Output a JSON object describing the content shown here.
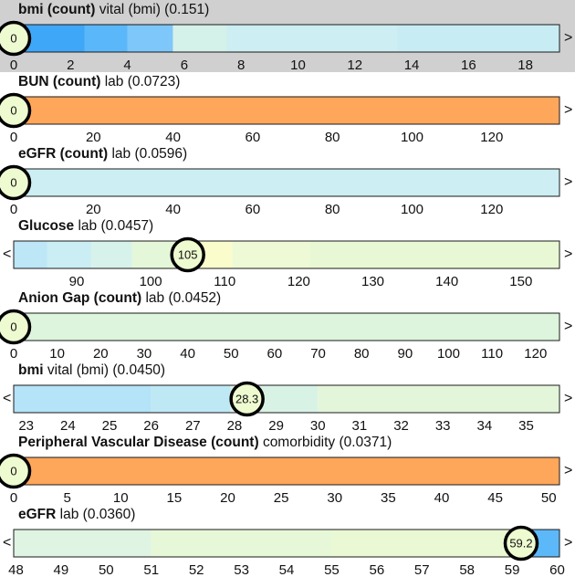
{
  "chart_data": [
    {
      "type": "heatmap",
      "title": "bmi (count)",
      "category": "vital (bmi)",
      "importance": "(0.151)",
      "highlighted": true,
      "xlim": [
        0,
        19.2
      ],
      "ticks": [
        0,
        2,
        4,
        6,
        8,
        10,
        12,
        14,
        16,
        18
      ],
      "value": 0,
      "value_label": "0",
      "left_arrow": "<",
      "right_arrow": ">",
      "bands": [
        {
          "from": 0,
          "to": 2.5,
          "color": "#3fa7f8"
        },
        {
          "from": 2.5,
          "to": 4,
          "color": "#5ab7f9"
        },
        {
          "from": 4,
          "to": 5.6,
          "color": "#7dc7fa"
        },
        {
          "from": 5.6,
          "to": 7.5,
          "color": "#d4f1ea"
        },
        {
          "from": 7.5,
          "to": 13.5,
          "color": "#cdeef2"
        },
        {
          "from": 13.5,
          "to": 19.2,
          "color": "#c8ecf4"
        }
      ]
    },
    {
      "type": "heatmap",
      "title": "BUN (count)",
      "category": "lab",
      "importance": "(0.0723)",
      "highlighted": false,
      "xlim": [
        0,
        137
      ],
      "ticks": [
        0,
        20,
        40,
        60,
        80,
        100,
        120
      ],
      "value": 0,
      "value_label": "0",
      "left_arrow": "<",
      "right_arrow": ">",
      "bands": [
        {
          "from": 0,
          "to": 137,
          "color": "#fea65a"
        }
      ]
    },
    {
      "type": "heatmap",
      "title": "eGFR (count)",
      "category": "lab",
      "importance": "(0.0596)",
      "highlighted": false,
      "xlim": [
        0,
        137
      ],
      "ticks": [
        0,
        20,
        40,
        60,
        80,
        100,
        120
      ],
      "value": 0,
      "value_label": "0",
      "left_arrow": "<",
      "right_arrow": ">",
      "bands": [
        {
          "from": 0,
          "to": 137,
          "color": "#cdeef2"
        }
      ]
    },
    {
      "type": "heatmap",
      "title": "Glucose",
      "category": "lab",
      "importance": "(0.0457)",
      "highlighted": false,
      "xlim": [
        81.5,
        155.2
      ],
      "ticks": [
        90,
        100,
        110,
        120,
        130,
        140,
        150
      ],
      "value": 105,
      "value_label": "105",
      "left_arrow": "<",
      "right_arrow": ">",
      "bands": [
        {
          "from": 81.5,
          "to": 86,
          "color": "#bde6f6"
        },
        {
          "from": 86,
          "to": 92,
          "color": "#caeef3"
        },
        {
          "from": 92,
          "to": 97.5,
          "color": "#d6f2ea"
        },
        {
          "from": 97.5,
          "to": 106,
          "color": "#e4f7d8"
        },
        {
          "from": 106,
          "to": 111,
          "color": "#fafccc"
        },
        {
          "from": 111,
          "to": 121.5,
          "color": "#eefad6"
        },
        {
          "from": 121.5,
          "to": 155.2,
          "color": "#e8f8d4"
        }
      ]
    },
    {
      "type": "heatmap",
      "title": "Anion Gap (count)",
      "category": "lab",
      "importance": "(0.0452)",
      "highlighted": false,
      "xlim": [
        0,
        125.5
      ],
      "ticks": [
        0,
        10,
        20,
        30,
        40,
        50,
        60,
        70,
        80,
        90,
        100,
        110,
        120
      ],
      "value": 0,
      "value_label": "0",
      "left_arrow": "<",
      "right_arrow": ">",
      "bands": [
        {
          "from": 0,
          "to": 125.5,
          "color": "#dcf5dc"
        }
      ]
    },
    {
      "type": "heatmap",
      "title": "bmi",
      "category": "vital (bmi)",
      "importance": "(0.0450)",
      "highlighted": false,
      "xlim": [
        22.7,
        35.8
      ],
      "ticks": [
        23,
        24,
        25,
        26,
        27,
        28,
        29,
        30,
        31,
        32,
        33,
        34,
        35
      ],
      "value": 28.3,
      "value_label": "28.3",
      "left_arrow": "<",
      "right_arrow": ">",
      "bands": [
        {
          "from": 22.7,
          "to": 26,
          "color": "#b5e3f7"
        },
        {
          "from": 26,
          "to": 27.9,
          "color": "#bfe8f5"
        },
        {
          "from": 27.9,
          "to": 30,
          "color": "#d8f3e6"
        },
        {
          "from": 30,
          "to": 35.8,
          "color": "#e4f6da"
        }
      ]
    },
    {
      "type": "heatmap",
      "title": "Peripheral Vascular Disease (count)",
      "category": "comorbidity",
      "importance": "(0.0371)",
      "highlighted": false,
      "xlim": [
        0,
        51
      ],
      "ticks": [
        0,
        5,
        10,
        15,
        20,
        25,
        30,
        35,
        40,
        45,
        50
      ],
      "value": 0,
      "value_label": "0",
      "left_arrow": "<",
      "right_arrow": ">",
      "bands": [
        {
          "from": 0,
          "to": 51,
          "color": "#fea65a"
        }
      ]
    },
    {
      "type": "heatmap",
      "title": "eGFR",
      "category": "lab",
      "importance": "(0.0360)",
      "highlighted": false,
      "xlim": [
        47.95,
        60.05
      ],
      "ticks": [
        48,
        49,
        50,
        51,
        52,
        53,
        54,
        55,
        56,
        57,
        58,
        59,
        60
      ],
      "value": 59.2,
      "value_label": "59.2",
      "left_arrow": "<",
      "right_arrow": ">",
      "bands": [
        {
          "from": 47.95,
          "to": 51,
          "color": "#dff4e2"
        },
        {
          "from": 51,
          "to": 55,
          "color": "#e6f8d8"
        },
        {
          "from": 55,
          "to": 59,
          "color": "#eaf9d4"
        },
        {
          "from": 59,
          "to": 59.3,
          "color": "#c5ebf4"
        },
        {
          "from": 59.3,
          "to": 60.05,
          "color": "#5cb8f9"
        }
      ]
    }
  ]
}
